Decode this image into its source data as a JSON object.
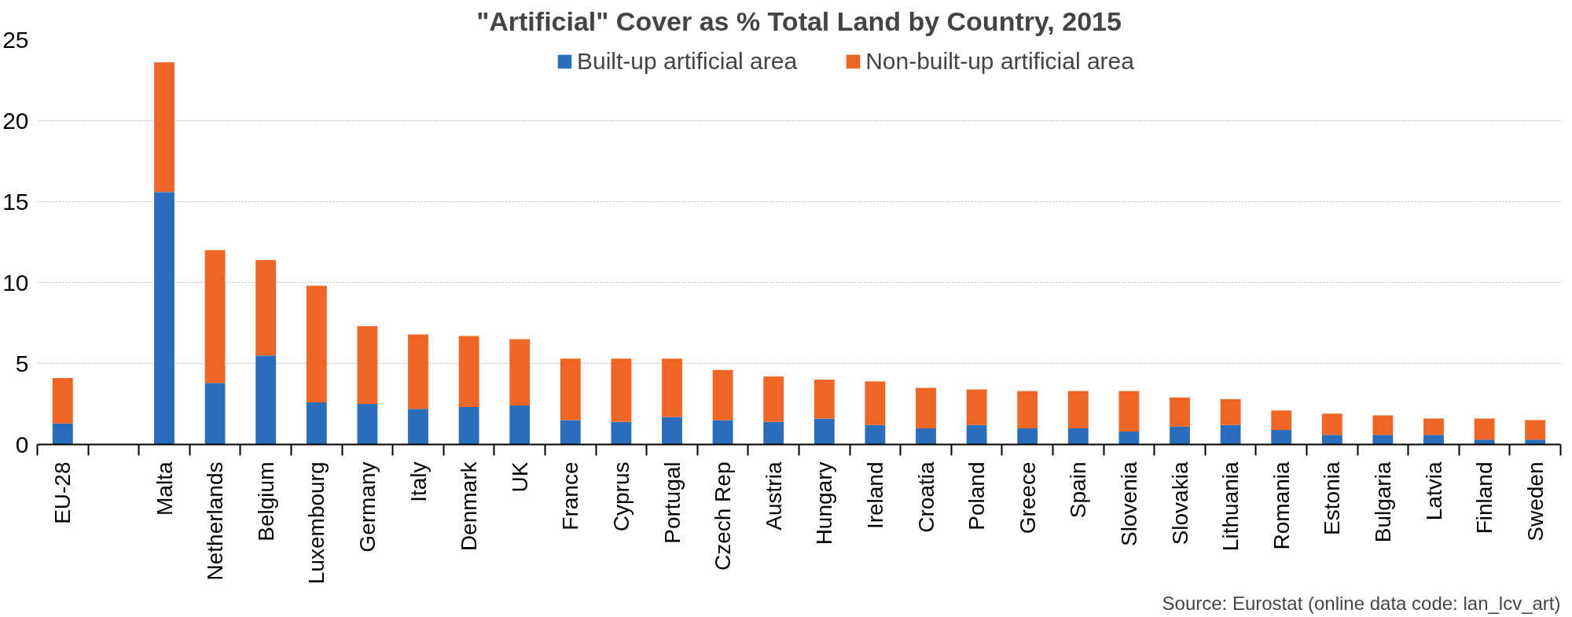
{
  "chart_data": {
    "type": "bar",
    "title": "\"Artificial\" Cover as % Total Land by Country, 2015",
    "categories": [
      "EU-28",
      null,
      "Malta",
      "Netherlands",
      "Belgium",
      "Luxembourg",
      "Germany",
      "Italy",
      "Denmark",
      "UK",
      "France",
      "Cyprus",
      "Portugal",
      "Czech Rep",
      "Austria",
      "Hungary",
      "Ireland",
      "Croatia",
      "Poland",
      "Greece",
      "Spain",
      "Slovenia",
      "Slovakia",
      "Lithuania",
      "Romania",
      "Estonia",
      "Bulgaria",
      "Latvia",
      "Finland",
      "Sweden"
    ],
    "stacked": true,
    "series": [
      {
        "name": "Built-up artificial area",
        "color": "#2a6ebb",
        "values": [
          1.3,
          null,
          15.6,
          3.8,
          5.5,
          2.6,
          2.5,
          2.2,
          2.3,
          2.4,
          1.5,
          1.4,
          1.7,
          1.5,
          1.4,
          1.6,
          1.2,
          1.0,
          1.2,
          1.0,
          1.0,
          0.8,
          1.1,
          1.2,
          0.9,
          0.6,
          0.6,
          0.6,
          0.3,
          0.3
        ]
      },
      {
        "name": "Non-built-up artificial area",
        "color": "#f06424",
        "values": [
          2.8,
          null,
          8.0,
          8.2,
          5.9,
          7.2,
          4.8,
          4.6,
          4.4,
          4.1,
          3.8,
          3.9,
          3.6,
          3.1,
          2.8,
          2.4,
          2.7,
          2.5,
          2.2,
          2.3,
          2.3,
          2.5,
          1.8,
          1.6,
          1.2,
          1.3,
          1.2,
          1.0,
          1.3,
          1.2
        ]
      }
    ],
    "ylim": [
      0,
      25
    ],
    "yticks": [
      0,
      5,
      10,
      15,
      20,
      25
    ],
    "grid": "y",
    "legend": "top",
    "annotations": [
      "Source: Eurostat (online data code: lan_lcv_art)"
    ]
  }
}
